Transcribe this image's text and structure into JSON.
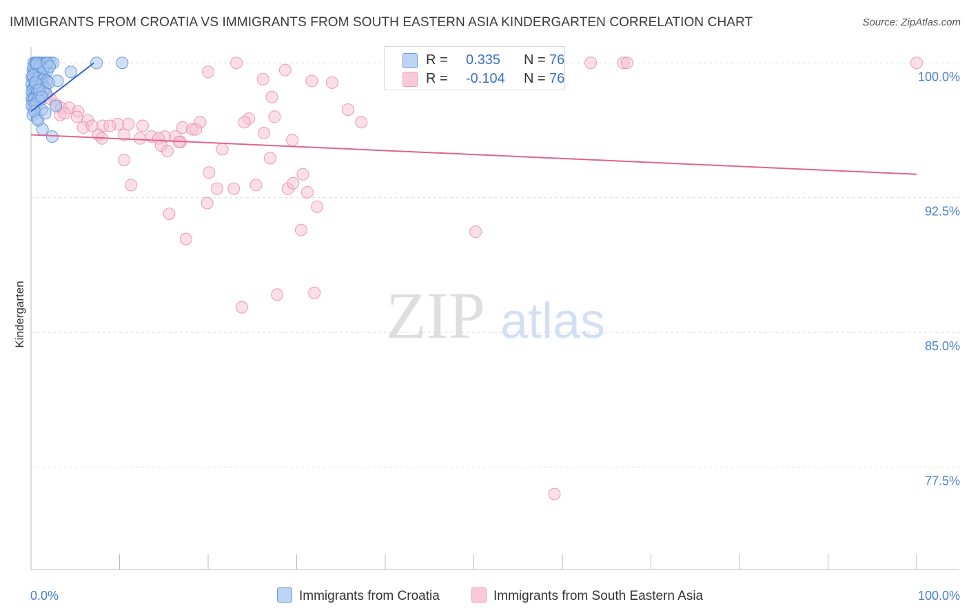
{
  "title": "IMMIGRANTS FROM CROATIA VS IMMIGRANTS FROM SOUTH EASTERN ASIA KINDERGARTEN CORRELATION CHART",
  "source": "Source: ZipAtlas.com",
  "watermark": {
    "zip": "ZIP",
    "atlas": "atlas"
  },
  "legend_top": {
    "rows": [
      {
        "r_label": "R =",
        "r_value": "0.335",
        "n_label": "N =",
        "n_value": "76"
      },
      {
        "r_label": "R =",
        "r_value": "-0.104",
        "n_label": "N =",
        "n_value": "76"
      }
    ]
  },
  "legend_bottom": {
    "series1": "Immigrants from Croatia",
    "series2": "Immigrants from South Eastern Asia"
  },
  "colors": {
    "blue_fill": "#a9c6ee",
    "blue_stroke": "#5b8fd8",
    "blue_line": "#2a62c9",
    "pink_fill": "#f7bfd2",
    "pink_stroke": "#e88fb0",
    "pink_line": "#e0628f",
    "grid": "#dddddd",
    "axis_text": "#4a7fd0"
  },
  "chart_data": {
    "type": "scatter",
    "title": "IMMIGRANTS FROM CROATIA VS IMMIGRANTS FROM SOUTH EASTERN ASIA KINDERGARTEN CORRELATION CHART",
    "xlabel": "",
    "ylabel": "Kindergarten",
    "xlim": [
      0,
      100
    ],
    "ylim": [
      71.8,
      101.2
    ],
    "y_ticks": [
      {
        "value": 100.0,
        "label": "100.0%"
      },
      {
        "value": 92.5,
        "label": "92.5%"
      },
      {
        "value": 85.0,
        "label": "85.0%"
      },
      {
        "value": 77.5,
        "label": "77.5%"
      }
    ],
    "x_tick_labels": {
      "min": "0.0%",
      "max": "100.0%"
    },
    "x_tick_positions": [
      0,
      10,
      20,
      30,
      40,
      50,
      60,
      70,
      80,
      90,
      100
    ],
    "series": [
      {
        "name": "Immigrants from Croatia",
        "color": "blue",
        "trend": {
          "x0": 0.0,
          "y0": 97.3,
          "x1": 7.1,
          "y1": 100.0
        },
        "points": [
          [
            0.3,
            100.0
          ],
          [
            0.5,
            100.0
          ],
          [
            0.7,
            100.0
          ],
          [
            0.9,
            100.0
          ],
          [
            1.1,
            100.0
          ],
          [
            1.3,
            100.0
          ],
          [
            1.6,
            100.0
          ],
          [
            1.9,
            100.0
          ],
          [
            2.2,
            100.0
          ],
          [
            2.5,
            100.0
          ],
          [
            7.4,
            100.0
          ],
          [
            10.3,
            100.0
          ],
          [
            0.2,
            99.6
          ],
          [
            0.4,
            99.5
          ],
          [
            0.6,
            99.5
          ],
          [
            0.8,
            99.5
          ],
          [
            1.0,
            99.6
          ],
          [
            1.2,
            99.4
          ],
          [
            1.5,
            99.3
          ],
          [
            1.8,
            99.5
          ],
          [
            4.5,
            99.5
          ],
          [
            0.1,
            99.2
          ],
          [
            0.3,
            99.1
          ],
          [
            0.5,
            99.0
          ],
          [
            0.7,
            99.1
          ],
          [
            0.9,
            99.2
          ],
          [
            1.2,
            99.0
          ],
          [
            1.5,
            99.1
          ],
          [
            1.8,
            99.0
          ],
          [
            3.0,
            99.0
          ],
          [
            0.1,
            98.8
          ],
          [
            0.2,
            98.6
          ],
          [
            0.4,
            98.7
          ],
          [
            0.6,
            98.8
          ],
          [
            0.8,
            98.6
          ],
          [
            1.0,
            98.7
          ],
          [
            1.3,
            98.8
          ],
          [
            1.6,
            98.6
          ],
          [
            0.1,
            98.4
          ],
          [
            0.3,
            98.3
          ],
          [
            0.5,
            98.2
          ],
          [
            0.7,
            98.4
          ],
          [
            0.9,
            98.3
          ],
          [
            1.1,
            98.2
          ],
          [
            1.4,
            98.4
          ],
          [
            1.7,
            98.3
          ],
          [
            0.1,
            98.0
          ],
          [
            0.2,
            97.9
          ],
          [
            0.4,
            98.0
          ],
          [
            0.6,
            97.8
          ],
          [
            0.8,
            98.0
          ],
          [
            1.0,
            97.9
          ],
          [
            0.1,
            97.6
          ],
          [
            0.3,
            97.5
          ],
          [
            0.5,
            97.7
          ],
          [
            1.2,
            97.4
          ],
          [
            2.8,
            97.6
          ],
          [
            0.2,
            97.1
          ],
          [
            0.7,
            96.9
          ],
          [
            1.3,
            96.3
          ],
          [
            2.4,
            95.9
          ],
          [
            0.3,
            99.8
          ],
          [
            0.6,
            99.9
          ],
          [
            1.0,
            99.8
          ],
          [
            1.4,
            99.7
          ],
          [
            0.2,
            99.3
          ],
          [
            0.5,
            98.9
          ],
          [
            0.9,
            98.5
          ],
          [
            1.2,
            98.1
          ],
          [
            0.4,
            97.3
          ],
          [
            0.8,
            96.8
          ],
          [
            1.6,
            97.2
          ],
          [
            2.0,
            98.9
          ],
          [
            0.6,
            100.0
          ],
          [
            1.8,
            100.0
          ],
          [
            2.1,
            99.8
          ]
        ]
      },
      {
        "name": "Immigrants from South Eastern Asia",
        "color": "pink",
        "trend": {
          "x0": 0.0,
          "y0": 96.0,
          "x1": 100.0,
          "y1": 93.8
        },
        "points": [
          [
            23.2,
            100.0
          ],
          [
            63.2,
            100.0
          ],
          [
            66.9,
            100.0
          ],
          [
            67.3,
            100.0
          ],
          [
            100.0,
            100.0
          ],
          [
            20.0,
            99.5
          ],
          [
            28.7,
            99.6
          ],
          [
            26.2,
            99.1
          ],
          [
            31.7,
            99.0
          ],
          [
            34.0,
            98.9
          ],
          [
            0.8,
            98.6
          ],
          [
            1.5,
            98.4
          ],
          [
            1.8,
            98.2
          ],
          [
            2.2,
            98.0
          ],
          [
            1.0,
            97.9
          ],
          [
            2.8,
            97.7
          ],
          [
            3.4,
            97.5
          ],
          [
            4.3,
            97.5
          ],
          [
            5.3,
            97.3
          ],
          [
            27.2,
            98.1
          ],
          [
            35.8,
            97.4
          ],
          [
            3.3,
            97.1
          ],
          [
            3.8,
            97.2
          ],
          [
            5.2,
            97.0
          ],
          [
            6.4,
            96.8
          ],
          [
            9.8,
            96.6
          ],
          [
            11.0,
            96.6
          ],
          [
            12.6,
            96.5
          ],
          [
            19.1,
            96.7
          ],
          [
            24.6,
            96.9
          ],
          [
            24.1,
            96.7
          ],
          [
            27.5,
            97.0
          ],
          [
            37.3,
            96.7
          ],
          [
            5.9,
            96.4
          ],
          [
            6.9,
            96.5
          ],
          [
            8.1,
            96.5
          ],
          [
            8.9,
            96.5
          ],
          [
            17.1,
            96.4
          ],
          [
            18.2,
            96.3
          ],
          [
            26.3,
            96.1
          ],
          [
            7.6,
            96.0
          ],
          [
            10.5,
            96.0
          ],
          [
            13.6,
            95.9
          ],
          [
            15.1,
            95.9
          ],
          [
            16.3,
            95.9
          ],
          [
            18.6,
            96.3
          ],
          [
            8.0,
            95.8
          ],
          [
            12.3,
            95.8
          ],
          [
            14.4,
            95.8
          ],
          [
            16.9,
            95.6
          ],
          [
            14.7,
            95.4
          ],
          [
            16.7,
            95.6
          ],
          [
            21.6,
            95.2
          ],
          [
            15.4,
            95.1
          ],
          [
            29.5,
            95.7
          ],
          [
            10.5,
            94.6
          ],
          [
            27.0,
            94.7
          ],
          [
            20.1,
            93.9
          ],
          [
            30.7,
            93.8
          ],
          [
            11.3,
            93.2
          ],
          [
            21.0,
            93.0
          ],
          [
            22.9,
            93.0
          ],
          [
            25.4,
            93.2
          ],
          [
            29.0,
            93.0
          ],
          [
            29.6,
            93.3
          ],
          [
            31.2,
            92.8
          ],
          [
            19.9,
            92.2
          ],
          [
            32.3,
            92.0
          ],
          [
            15.6,
            91.6
          ],
          [
            17.5,
            90.2
          ],
          [
            30.5,
            90.7
          ],
          [
            50.2,
            90.6
          ],
          [
            27.8,
            87.1
          ],
          [
            32.0,
            87.2
          ],
          [
            23.8,
            86.4
          ],
          [
            59.1,
            76.0
          ]
        ]
      }
    ]
  }
}
